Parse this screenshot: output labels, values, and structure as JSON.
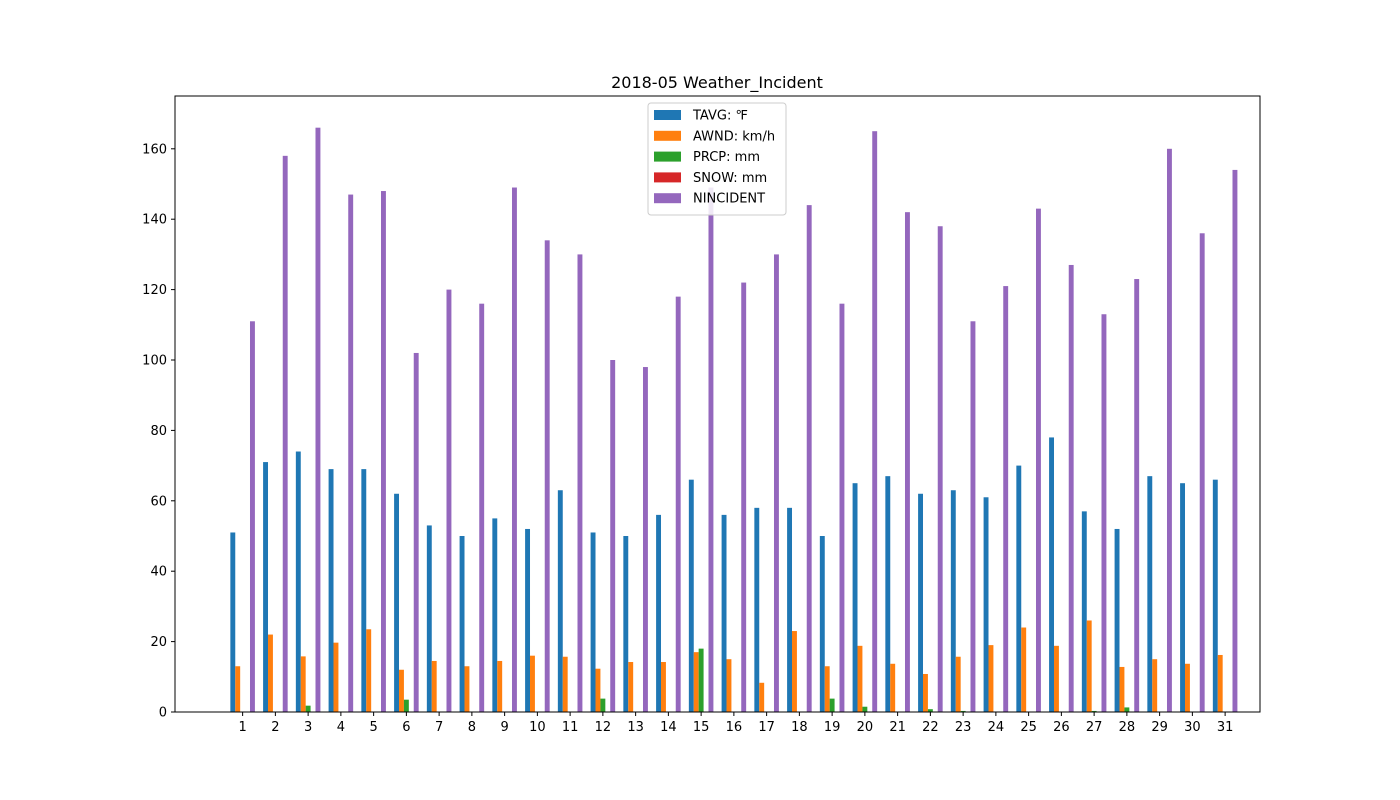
{
  "chart_data": {
    "type": "bar",
    "title": "2018-05 Weather_Incident",
    "xlabel": "",
    "ylabel": "",
    "ylim": [
      0,
      175
    ],
    "yticks": [
      0,
      20,
      40,
      60,
      80,
      100,
      120,
      140,
      160
    ],
    "categories": [
      "1",
      "2",
      "3",
      "4",
      "5",
      "6",
      "7",
      "8",
      "9",
      "10",
      "11",
      "12",
      "13",
      "14",
      "15",
      "16",
      "17",
      "18",
      "19",
      "20",
      "21",
      "22",
      "23",
      "24",
      "25",
      "26",
      "27",
      "28",
      "29",
      "30",
      "31"
    ],
    "legend_position": "top-center",
    "grid": false,
    "series": [
      {
        "name": "TAVG: ℉",
        "color": "#1f77b4",
        "values": [
          51,
          71,
          74,
          69,
          69,
          62,
          53,
          50,
          55,
          52,
          63,
          51,
          50,
          56,
          66,
          56,
          58,
          58,
          50,
          65,
          67,
          62,
          63,
          61,
          70,
          78,
          57,
          52,
          67,
          65,
          66
        ]
      },
      {
        "name": "AWND: km/h",
        "color": "#ff7f0e",
        "values": [
          13,
          22,
          15.8,
          19.7,
          23.5,
          12,
          14.5,
          13,
          14.5,
          16,
          15.7,
          12.3,
          14.2,
          14.2,
          17,
          15,
          8.3,
          23,
          13,
          18.8,
          13.7,
          10.8,
          15.7,
          19,
          24,
          18.8,
          26,
          12.8,
          15,
          13.7,
          16.2
        ]
      },
      {
        "name": "PRCP: mm",
        "color": "#2ca02c",
        "values": [
          0,
          0,
          1.8,
          0,
          0,
          3.5,
          0,
          0,
          0,
          0,
          0,
          3.8,
          0,
          0,
          18,
          0,
          0,
          0,
          3.8,
          1.5,
          0,
          0.8,
          0.3,
          0,
          0,
          0,
          0.3,
          1.3,
          0,
          0,
          0
        ]
      },
      {
        "name": "SNOW: mm",
        "color": "#d62728",
        "values": [
          0,
          0,
          0,
          0,
          0,
          0,
          0,
          0,
          0,
          0,
          0,
          0,
          0,
          0,
          0,
          0,
          0,
          0,
          0,
          0,
          0,
          0,
          0,
          0,
          0,
          0,
          0,
          0,
          0,
          0,
          0
        ]
      },
      {
        "name": "NINCIDENT",
        "color": "#9467bd",
        "values": [
          111,
          158,
          166,
          147,
          148,
          102,
          120,
          116,
          149,
          134,
          130,
          100,
          98,
          118,
          149,
          122,
          130,
          144,
          116,
          165,
          142,
          138,
          111,
          121,
          143,
          127,
          113,
          123,
          160,
          136,
          154
        ]
      }
    ]
  }
}
